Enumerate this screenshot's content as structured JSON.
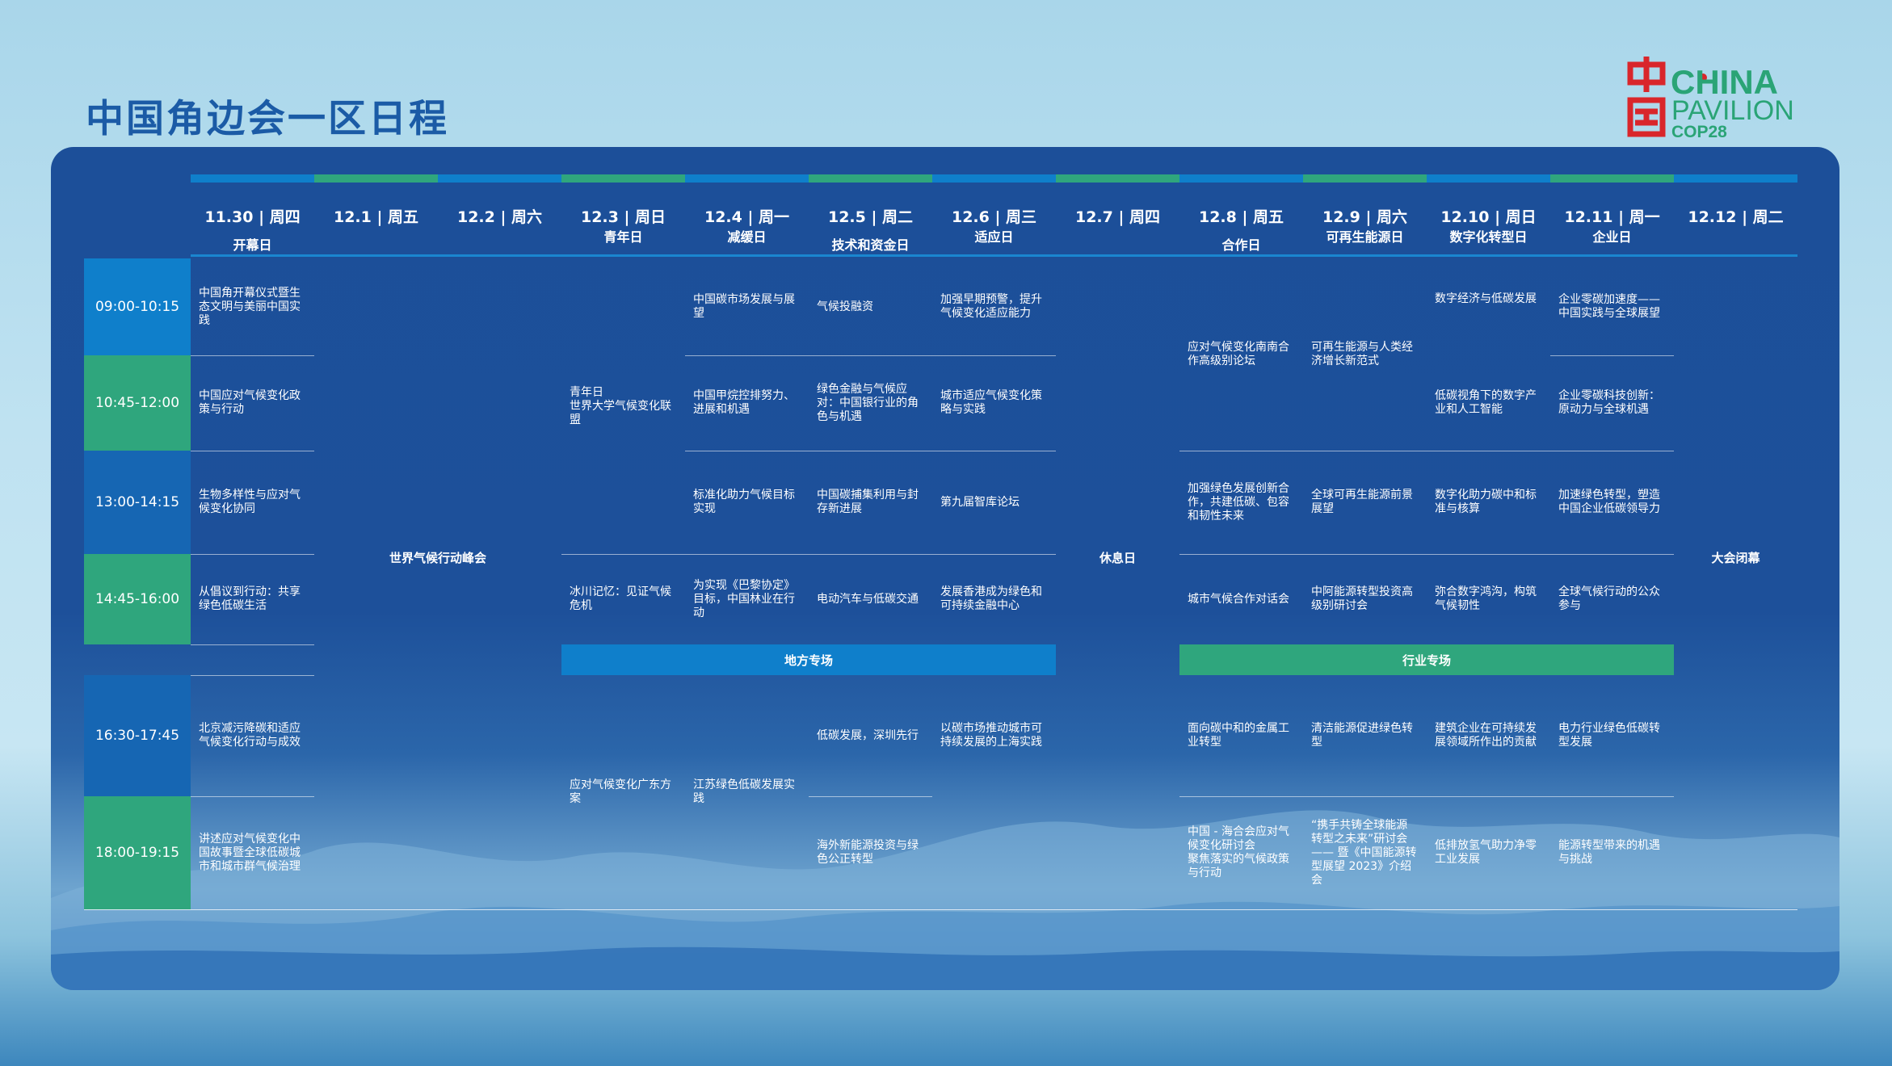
{
  "title": "中国角边会一区日程",
  "logo": {
    "cn": "中国",
    "line1": "CHINA",
    "line2": "PAVILION",
    "line3": "COP28"
  },
  "days": [
    {
      "date": "11.30 | 周四",
      "theme": "开幕日"
    },
    {
      "date": "12.1 | 周五",
      "theme": ""
    },
    {
      "date": "12.2 | 周六",
      "theme": ""
    },
    {
      "date": "12.3 | 周日",
      "theme": "青年日"
    },
    {
      "date": "12.4 | 周一",
      "theme": "减缓日"
    },
    {
      "date": "12.5 | 周二",
      "theme": "技术和资金日"
    },
    {
      "date": "12.6 | 周三",
      "theme": "适应日"
    },
    {
      "date": "12.7 | 周四",
      "theme": ""
    },
    {
      "date": "12.8 | 周五",
      "theme": "合作日"
    },
    {
      "date": "12.9 | 周六",
      "theme": "可再生能源日"
    },
    {
      "date": "12.10 | 周日",
      "theme": "数字化转型日"
    },
    {
      "date": "12.11 | 周一",
      "theme": "企业日"
    },
    {
      "date": "12.12 | 周二",
      "theme": ""
    }
  ],
  "slots": [
    "09:00-10:15",
    "10:45-12:00",
    "13:00-14:15",
    "14:45-16:00",
    "16:30-17:45",
    "18:00-19:15"
  ],
  "spans": {
    "summit": "世界气候行动峰会",
    "rest_day": "休息日",
    "closing": "大会闭幕"
  },
  "bands": {
    "local": "地方专场",
    "industry": "行业专场"
  },
  "sessions": {
    "d1130": [
      "中国角开幕仪式暨生态文明与美丽中国实践",
      "中国应对气候变化政策与行动",
      "生物多样性与应对气候变化协同",
      "从倡议到行动：共享绿色低碳生活",
      "北京减污降碳和适应气候变化行动与成效",
      "讲述应对气候变化中国故事暨全球低碳城市和城市群气候治理"
    ],
    "d123": [
      "青年日\n世界大学气候变化联盟",
      "冰川记忆：见证气候危机",
      "应对气候变化广东方案"
    ],
    "d124": [
      "中国碳市场发展与展望",
      "中国甲烷控排努力、进展和机遇",
      "标准化助力气候目标实现",
      "为实现《巴黎协定》目标，中国林业在行动",
      "江苏绿色低碳发展实践"
    ],
    "d125": [
      "气候投融资",
      "绿色金融与气候应对：中国银行业的角色与机遇",
      "中国碳捕集利用与封存新进展",
      "电动汽车与低碳交通",
      "低碳发展，深圳先行",
      "海外新能源投资与绿色公正转型"
    ],
    "d126": [
      "加强早期预警，提升气候变化适应能力",
      "城市适应气候变化策略与实践",
      "第九届智库论坛",
      "发展香港成为绿色和可持续金融中心",
      "以碳市场推动城市可持续发展的上海实践"
    ],
    "d128": [
      "应对气候变化南南合作高级别论坛",
      "加强绿色发展创新合作，共建低碳、包容和韧性未来",
      "城市气候合作对话会",
      "面向碳中和的金属工业转型",
      "中国 - 海合会应对气候变化研讨会\n聚焦落实的气候政策与行动"
    ],
    "d129": [
      "可再生能源与人类经济增长新范式",
      "全球可再生能源前景展望",
      "中阿能源转型投资高级别研讨会",
      "清洁能源促进绿色转型",
      "“携手共铸全球能源转型之未来”研讨会—— 暨《中国能源转型展望 2023》介绍会"
    ],
    "d1210": [
      "数字经济与低碳发展",
      "低碳视角下的数字产业和人工智能",
      "数字化助力碳中和标准与核算",
      "弥合数字鸿沟，构筑气候韧性",
      "建筑企业在可持续发展领域所作出的贡献",
      "低排放氢气助力净零工业发展"
    ],
    "d1211": [
      "企业零碳加速度——中国实践与全球展望",
      "企业零碳科技创新：原动力与全球机遇",
      "加速绿色转型，塑造中国企业低碳领导力",
      "全球气候行动的公众参与",
      "电力行业绿色低碳转型发展",
      "能源转型带来的机遇与挑战"
    ]
  },
  "colors": {
    "board": "#1d509a",
    "accent_blue": "#0f7fcb",
    "accent_green": "#2fa67d",
    "time_dark": "#1666b3",
    "title": "#1b5ba6",
    "logo_red": "#d9262b",
    "logo_green": "#2aa476"
  }
}
